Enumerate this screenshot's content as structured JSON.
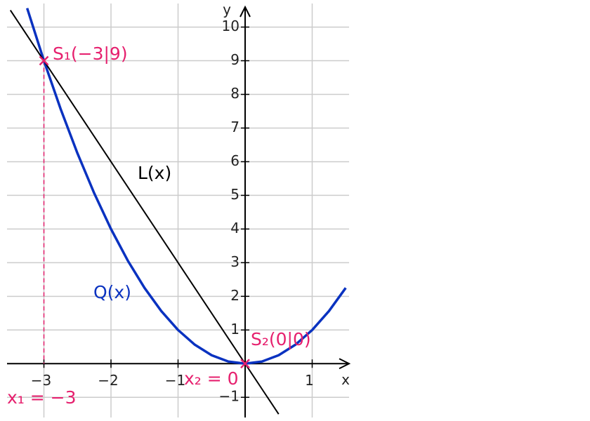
{
  "chart_data": {
    "type": "line",
    "xlabel": "x",
    "ylabel": "y",
    "xlim": [
      -3.55,
      1.55
    ],
    "ylim": [
      -1.6,
      10.7
    ],
    "xticks": [
      {
        "value": -3,
        "label": "−3"
      },
      {
        "value": -2,
        "label": "−2"
      },
      {
        "value": -1,
        "label": "−1"
      },
      1
    ],
    "yticks": [
      {
        "value": -1,
        "label": "−1"
      },
      1,
      2,
      3,
      4,
      5,
      6,
      7,
      8,
      9,
      10
    ],
    "grid": true,
    "series": [
      {
        "name": "Q(x)",
        "color": "#0a32c0",
        "x": [
          -3.25,
          -3,
          -2.75,
          -2.5,
          -2.25,
          -2,
          -1.75,
          -1.5,
          -1.25,
          -1,
          -0.75,
          -0.5,
          -0.25,
          0,
          0.25,
          0.5,
          0.75,
          1,
          1.25,
          1.5
        ],
        "values": [
          10.5625,
          9,
          7.5625,
          6.25,
          5.0625,
          4,
          3.0625,
          2.25,
          1.5625,
          1,
          0.5625,
          0.25,
          0.0625,
          0,
          0.0625,
          0.25,
          0.5625,
          1,
          1.5625,
          2.25
        ]
      },
      {
        "name": "L(x)",
        "color": "#000000",
        "x": [
          -3.5,
          0.5
        ],
        "values": [
          10.5,
          -1.5
        ]
      }
    ],
    "annotations": [
      {
        "text": "S₁(−3|9)",
        "x": -3,
        "y": 9,
        "color": "#e6206e"
      },
      {
        "text": "S₂(0|0)",
        "x": 0,
        "y": 0,
        "color": "#e6206e"
      }
    ],
    "solutions": [
      {
        "text": "x₁ = −3",
        "x": -3
      },
      {
        "text": "x₂ = 0",
        "x": 0
      }
    ]
  }
}
